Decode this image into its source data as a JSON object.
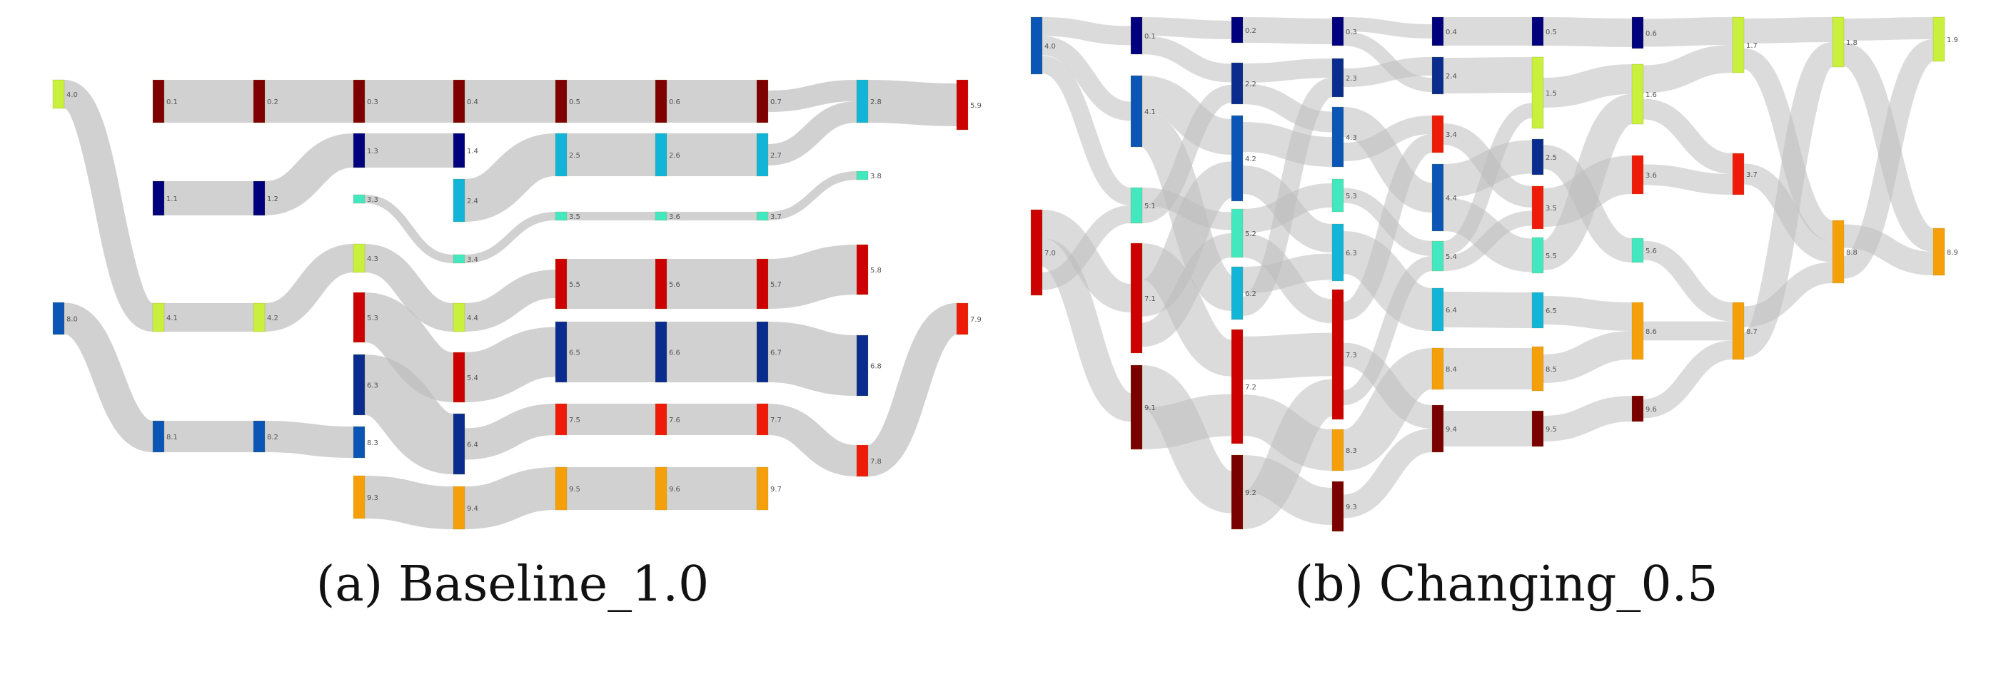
{
  "colors": {
    "link": "#bdbdbd",
    "series": {
      "0": "#7f0000",
      "1": "#00007f",
      "2": "#0a2c8f",
      "3": "#44e8c0",
      "4": "#c8f03c",
      "5": "#cc0000",
      "6": "#12b4d8",
      "7": "#ee1a0a",
      "8": "#f5a00a",
      "9": "#7a0000"
    }
  },
  "captions": {
    "a": "(a) Baseline_1.0",
    "b": "(b) Changing_0.5"
  },
  "panels": [
    {
      "id": "baseline",
      "nodes": [
        {
          "id": "4.0",
          "c": "#c8f03c"
        },
        {
          "id": "8.0",
          "c": "#0a55b5"
        },
        {
          "id": "0.1",
          "c": "#7f0000"
        },
        {
          "id": "1.1",
          "c": "#00007f"
        },
        {
          "id": "4.1",
          "c": "#c8f03c"
        },
        {
          "id": "8.1",
          "c": "#0a55b5"
        },
        {
          "id": "0.2",
          "c": "#7f0000"
        },
        {
          "id": "1.2",
          "c": "#00007f"
        },
        {
          "id": "4.2",
          "c": "#c8f03c"
        },
        {
          "id": "8.2",
          "c": "#0a55b5"
        },
        {
          "id": "0.3",
          "c": "#7f0000"
        },
        {
          "id": "1.3",
          "c": "#00007f"
        },
        {
          "id": "3.3",
          "c": "#44e8c0"
        },
        {
          "id": "4.3",
          "c": "#c8f03c"
        },
        {
          "id": "5.3",
          "c": "#cc0000"
        },
        {
          "id": "6.3",
          "c": "#0a2c8f"
        },
        {
          "id": "8.3",
          "c": "#0a55b5"
        },
        {
          "id": "9.3",
          "c": "#f5a00a"
        },
        {
          "id": "0.4",
          "c": "#7f0000"
        },
        {
          "id": "1.4",
          "c": "#00007f"
        },
        {
          "id": "2.4",
          "c": "#12b4d8"
        },
        {
          "id": "3.4",
          "c": "#44e8c0"
        },
        {
          "id": "4.4",
          "c": "#c8f03c"
        },
        {
          "id": "5.4",
          "c": "#cc0000"
        },
        {
          "id": "6.4",
          "c": "#0a2c8f"
        },
        {
          "id": "9.4",
          "c": "#f5a00a"
        },
        {
          "id": "0.5",
          "c": "#7f0000"
        },
        {
          "id": "2.5",
          "c": "#12b4d8"
        },
        {
          "id": "3.5",
          "c": "#44e8c0"
        },
        {
          "id": "5.5",
          "c": "#cc0000"
        },
        {
          "id": "6.5",
          "c": "#0a2c8f"
        },
        {
          "id": "7.5",
          "c": "#ee1a0a"
        },
        {
          "id": "9.5",
          "c": "#f5a00a"
        },
        {
          "id": "0.6",
          "c": "#7f0000"
        },
        {
          "id": "2.6",
          "c": "#12b4d8"
        },
        {
          "id": "3.6",
          "c": "#44e8c0"
        },
        {
          "id": "5.6",
          "c": "#cc0000"
        },
        {
          "id": "6.6",
          "c": "#0a2c8f"
        },
        {
          "id": "7.6",
          "c": "#ee1a0a"
        },
        {
          "id": "9.6",
          "c": "#f5a00a"
        },
        {
          "id": "0.7",
          "c": "#7f0000"
        },
        {
          "id": "2.7",
          "c": "#12b4d8"
        },
        {
          "id": "3.7",
          "c": "#44e8c0"
        },
        {
          "id": "5.7",
          "c": "#cc0000"
        },
        {
          "id": "6.7",
          "c": "#0a2c8f"
        },
        {
          "id": "7.7",
          "c": "#ee1a0a"
        },
        {
          "id": "9.7",
          "c": "#f5a00a"
        },
        {
          "id": "2.8",
          "c": "#12b4d8"
        },
        {
          "id": "3.8",
          "c": "#44e8c0"
        },
        {
          "id": "5.8",
          "c": "#cc0000"
        },
        {
          "id": "6.8",
          "c": "#0a2c8f"
        },
        {
          "id": "7.8",
          "c": "#ee1a0a"
        },
        {
          "id": "5.9",
          "c": "#cc0000"
        },
        {
          "id": "7.9",
          "c": "#ee1a0a"
        }
      ],
      "links": [
        [
          "4.0",
          "4.1"
        ],
        [
          "8.0",
          "8.1"
        ],
        [
          "0.1",
          "0.2"
        ],
        [
          "1.1",
          "1.2"
        ],
        [
          "4.1",
          "4.2"
        ],
        [
          "8.1",
          "8.2"
        ],
        [
          "0.2",
          "0.3"
        ],
        [
          "1.2",
          "1.3"
        ],
        [
          "4.2",
          "4.3"
        ],
        [
          "8.2",
          "8.3"
        ],
        [
          "0.3",
          "0.4"
        ],
        [
          "1.3",
          "1.4"
        ],
        [
          "3.3",
          "3.4"
        ],
        [
          "4.3",
          "4.4"
        ],
        [
          "5.3",
          "5.4"
        ],
        [
          "6.3",
          "6.4"
        ],
        [
          "9.3",
          "9.4"
        ],
        [
          "0.4",
          "0.5"
        ],
        [
          "2.4",
          "2.5"
        ],
        [
          "3.4",
          "3.5"
        ],
        [
          "4.4",
          "5.5"
        ],
        [
          "5.4",
          "6.5"
        ],
        [
          "6.4",
          "7.5"
        ],
        [
          "9.4",
          "9.5"
        ],
        [
          "0.5",
          "0.6"
        ],
        [
          "2.5",
          "2.6"
        ],
        [
          "3.5",
          "3.6"
        ],
        [
          "5.5",
          "5.6"
        ],
        [
          "6.5",
          "6.6"
        ],
        [
          "7.5",
          "7.6"
        ],
        [
          "9.5",
          "9.6"
        ],
        [
          "0.6",
          "0.7"
        ],
        [
          "2.6",
          "2.7"
        ],
        [
          "3.6",
          "3.7"
        ],
        [
          "5.6",
          "5.7"
        ],
        [
          "6.6",
          "6.7"
        ],
        [
          "7.6",
          "7.7"
        ],
        [
          "9.6",
          "9.7"
        ],
        [
          "0.7",
          "2.8"
        ],
        [
          "2.7",
          "2.8"
        ],
        [
          "3.7",
          "3.8"
        ],
        [
          "5.7",
          "5.8"
        ],
        [
          "6.7",
          "6.8"
        ],
        [
          "7.7",
          "7.8"
        ],
        [
          "2.8",
          "5.9"
        ],
        [
          "7.8",
          "7.9"
        ]
      ]
    },
    {
      "id": "changing",
      "nodes": [
        {
          "id": "4.0",
          "c": "#0a55b5"
        },
        {
          "id": "7.0",
          "c": "#cc0000"
        },
        {
          "id": "0.1",
          "c": "#00007f"
        },
        {
          "id": "4.1",
          "c": "#0a55b5"
        },
        {
          "id": "5.1",
          "c": "#44e8c0"
        },
        {
          "id": "7.1",
          "c": "#cc0000"
        },
        {
          "id": "9.1",
          "c": "#7a0000"
        },
        {
          "id": "0.2",
          "c": "#00007f"
        },
        {
          "id": "2.2",
          "c": "#0a2c8f"
        },
        {
          "id": "4.2",
          "c": "#0a55b5"
        },
        {
          "id": "5.2",
          "c": "#44e8c0"
        },
        {
          "id": "6.2",
          "c": "#12b4d8"
        },
        {
          "id": "7.2",
          "c": "#cc0000"
        },
        {
          "id": "9.2",
          "c": "#7a0000"
        },
        {
          "id": "0.3",
          "c": "#00007f"
        },
        {
          "id": "2.3",
          "c": "#0a2c8f"
        },
        {
          "id": "4.3",
          "c": "#0a55b5"
        },
        {
          "id": "5.3",
          "c": "#44e8c0"
        },
        {
          "id": "6.3",
          "c": "#12b4d8"
        },
        {
          "id": "7.3",
          "c": "#cc0000"
        },
        {
          "id": "8.3",
          "c": "#f5a00a"
        },
        {
          "id": "9.3",
          "c": "#7a0000"
        },
        {
          "id": "0.4",
          "c": "#00007f"
        },
        {
          "id": "2.4",
          "c": "#0a2c8f"
        },
        {
          "id": "3.4",
          "c": "#ee1a0a"
        },
        {
          "id": "4.4",
          "c": "#0a55b5"
        },
        {
          "id": "5.4",
          "c": "#44e8c0"
        },
        {
          "id": "6.4",
          "c": "#12b4d8"
        },
        {
          "id": "8.4",
          "c": "#f5a00a"
        },
        {
          "id": "9.4",
          "c": "#7a0000"
        },
        {
          "id": "0.5",
          "c": "#00007f"
        },
        {
          "id": "1.5",
          "c": "#c8f03c"
        },
        {
          "id": "2.5",
          "c": "#0a2c8f"
        },
        {
          "id": "3.5",
          "c": "#ee1a0a"
        },
        {
          "id": "5.5",
          "c": "#44e8c0"
        },
        {
          "id": "6.5",
          "c": "#12b4d8"
        },
        {
          "id": "8.5",
          "c": "#f5a00a"
        },
        {
          "id": "9.5",
          "c": "#7a0000"
        },
        {
          "id": "0.6",
          "c": "#00007f"
        },
        {
          "id": "1.6",
          "c": "#c8f03c"
        },
        {
          "id": "3.6",
          "c": "#ee1a0a"
        },
        {
          "id": "5.6",
          "c": "#44e8c0"
        },
        {
          "id": "8.6",
          "c": "#f5a00a"
        },
        {
          "id": "9.6",
          "c": "#7a0000"
        },
        {
          "id": "1.7",
          "c": "#c8f03c"
        },
        {
          "id": "3.7",
          "c": "#ee1a0a"
        },
        {
          "id": "8.7",
          "c": "#f5a00a"
        },
        {
          "id": "1.8",
          "c": "#c8f03c"
        },
        {
          "id": "8.8",
          "c": "#f5a00a"
        },
        {
          "id": "1.9",
          "c": "#c8f03c"
        },
        {
          "id": "8.9",
          "c": "#f5a00a"
        }
      ],
      "links": [
        [
          "4.0",
          "0.1"
        ],
        [
          "4.0",
          "4.1"
        ],
        [
          "4.0",
          "5.1"
        ],
        [
          "7.0",
          "7.1"
        ],
        [
          "7.0",
          "9.1"
        ],
        [
          "7.0",
          "5.1"
        ],
        [
          "0.1",
          "0.2"
        ],
        [
          "0.1",
          "2.2"
        ],
        [
          "4.1",
          "4.2"
        ],
        [
          "4.1",
          "6.2"
        ],
        [
          "5.1",
          "5.2"
        ],
        [
          "5.1",
          "2.2"
        ],
        [
          "7.1",
          "7.2"
        ],
        [
          "7.1",
          "4.2"
        ],
        [
          "7.1",
          "5.2"
        ],
        [
          "9.1",
          "9.2"
        ],
        [
          "9.1",
          "7.2"
        ],
        [
          "0.2",
          "0.3"
        ],
        [
          "2.2",
          "2.3"
        ],
        [
          "2.2",
          "4.3"
        ],
        [
          "4.2",
          "4.3"
        ],
        [
          "4.2",
          "6.3"
        ],
        [
          "5.2",
          "5.3"
        ],
        [
          "5.2",
          "7.3"
        ],
        [
          "6.2",
          "6.3"
        ],
        [
          "6.2",
          "2.3"
        ],
        [
          "7.2",
          "7.3"
        ],
        [
          "7.2",
          "8.3"
        ],
        [
          "9.2",
          "9.3"
        ],
        [
          "9.2",
          "7.3"
        ],
        [
          "0.3",
          "0.4"
        ],
        [
          "2.3",
          "2.4"
        ],
        [
          "4.3",
          "4.4"
        ],
        [
          "4.3",
          "3.4"
        ],
        [
          "5.3",
          "5.4"
        ],
        [
          "6.3",
          "6.4"
        ],
        [
          "7.3",
          "3.4"
        ],
        [
          "7.3",
          "9.4"
        ],
        [
          "7.3",
          "5.4"
        ],
        [
          "8.3",
          "8.4"
        ],
        [
          "9.3",
          "9.4"
        ],
        [
          "0.3",
          "2.4"
        ],
        [
          "0.4",
          "0.5"
        ],
        [
          "2.4",
          "1.5"
        ],
        [
          "3.4",
          "3.5"
        ],
        [
          "4.4",
          "2.5"
        ],
        [
          "4.4",
          "5.5"
        ],
        [
          "5.4",
          "1.5"
        ],
        [
          "6.4",
          "6.5"
        ],
        [
          "8.4",
          "8.5"
        ],
        [
          "9.4",
          "9.5"
        ],
        [
          "5.4",
          "3.5"
        ],
        [
          "0.5",
          "0.6"
        ],
        [
          "1.5",
          "1.6"
        ],
        [
          "2.5",
          "5.6"
        ],
        [
          "3.5",
          "3.6"
        ],
        [
          "5.5",
          "1.6"
        ],
        [
          "6.5",
          "8.6"
        ],
        [
          "8.5",
          "8.6"
        ],
        [
          "9.5",
          "9.6"
        ],
        [
          "0.6",
          "1.7"
        ],
        [
          "1.6",
          "1.7"
        ],
        [
          "1.6",
          "3.7"
        ],
        [
          "3.6",
          "3.7"
        ],
        [
          "5.6",
          "8.7"
        ],
        [
          "8.6",
          "8.7"
        ],
        [
          "9.6",
          "8.7"
        ],
        [
          "1.7",
          "1.8"
        ],
        [
          "1.7",
          "8.8"
        ],
        [
          "3.7",
          "8.8"
        ],
        [
          "8.7",
          "8.8"
        ],
        [
          "8.7",
          "1.8"
        ],
        [
          "1.8",
          "1.9"
        ],
        [
          "1.8",
          "8.9"
        ],
        [
          "8.8",
          "8.9"
        ],
        [
          "8.8",
          "1.9"
        ]
      ]
    }
  ]
}
